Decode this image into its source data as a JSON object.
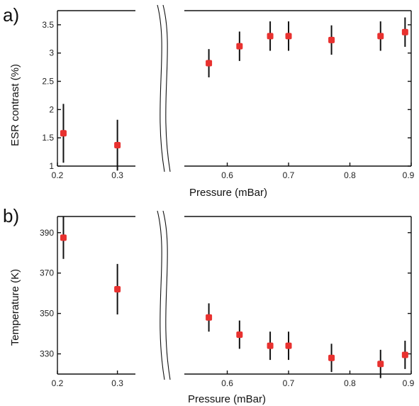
{
  "chart_data": [
    {
      "type": "scatter",
      "panel_label": "a)",
      "ylabel": "ESR contrast (%)",
      "xlabel": "Pressure (mBar)",
      "broken_x_axis": true,
      "left_xlim": [
        0.2,
        0.33
      ],
      "right_xlim": [
        0.53,
        0.9
      ],
      "ylim": [
        1.0,
        3.75
      ],
      "yticks": [
        "1",
        "1.5",
        "2",
        "2.5",
        "3",
        "3.5"
      ],
      "left_xticks": [
        "0.2",
        "0.3"
      ],
      "right_xticks": [
        "0.6",
        "0.7",
        "0.8",
        "0.9"
      ],
      "marker_color": "#e8312f",
      "errorbar_color": "#111111",
      "points": [
        {
          "x": 0.21,
          "y": 1.58,
          "err": 0.52
        },
        {
          "x": 0.3,
          "y": 1.37,
          "err": 0.45
        },
        {
          "x": 0.57,
          "y": 2.82,
          "err": 0.25
        },
        {
          "x": 0.62,
          "y": 3.12,
          "err": 0.26
        },
        {
          "x": 0.67,
          "y": 3.3,
          "err": 0.26
        },
        {
          "x": 0.7,
          "y": 3.3,
          "err": 0.26
        },
        {
          "x": 0.77,
          "y": 3.23,
          "err": 0.26
        },
        {
          "x": 0.85,
          "y": 3.3,
          "err": 0.26
        },
        {
          "x": 0.89,
          "y": 3.37,
          "err": 0.26
        }
      ]
    },
    {
      "type": "scatter",
      "panel_label": "b)",
      "ylabel": "Temperature (K)",
      "xlabel": "Pressure (mBar)",
      "broken_x_axis": true,
      "left_xlim": [
        0.2,
        0.33
      ],
      "right_xlim": [
        0.53,
        0.9
      ],
      "ylim": [
        320,
        398
      ],
      "yticks": [
        "330",
        "350",
        "370",
        "390"
      ],
      "left_xticks": [
        "0.2",
        "0.3"
      ],
      "right_xticks": [
        "0.6",
        "0.7",
        "0.8",
        "0.9"
      ],
      "marker_color": "#e8312f",
      "errorbar_color": "#111111",
      "points": [
        {
          "x": 0.21,
          "y": 387.5,
          "err": 10.5
        },
        {
          "x": 0.3,
          "y": 362.0,
          "err": 12.5
        },
        {
          "x": 0.57,
          "y": 348.0,
          "err": 7.0
        },
        {
          "x": 0.62,
          "y": 339.5,
          "err": 7.0
        },
        {
          "x": 0.67,
          "y": 334.0,
          "err": 7.0
        },
        {
          "x": 0.7,
          "y": 334.0,
          "err": 7.0
        },
        {
          "x": 0.77,
          "y": 328.0,
          "err": 7.0
        },
        {
          "x": 0.85,
          "y": 325.0,
          "err": 7.0
        },
        {
          "x": 0.89,
          "y": 329.5,
          "err": 7.0
        }
      ]
    }
  ]
}
